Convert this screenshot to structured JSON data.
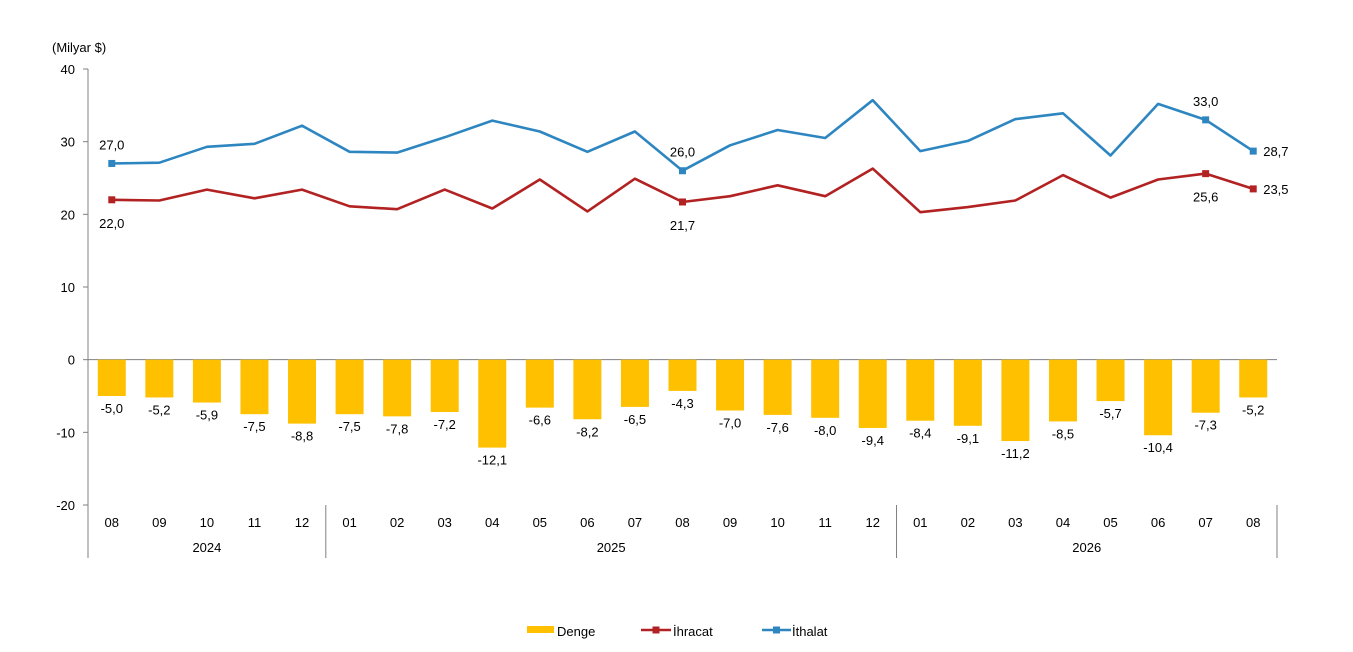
{
  "chart_data": {
    "type": "bar",
    "unit_label": "(Milyar $)",
    "ylim": [
      -20,
      40
    ],
    "yticks": [
      -20,
      -10,
      0,
      10,
      20,
      30,
      40
    ],
    "categories": [
      "08",
      "09",
      "10",
      "11",
      "12",
      "01",
      "02",
      "03",
      "04",
      "05",
      "06",
      "07",
      "08",
      "09",
      "10",
      "11",
      "12",
      "01",
      "02",
      "03",
      "04",
      "05",
      "06",
      "07",
      "08"
    ],
    "year_groups": [
      {
        "label": "2024",
        "start": 0,
        "end": 4
      },
      {
        "label": "2025",
        "start": 5,
        "end": 16
      },
      {
        "label": "2026",
        "start": 17,
        "end": 24
      }
    ],
    "series": [
      {
        "name": "Denge",
        "kind": "bar",
        "color": "#FFC000",
        "values": [
          -5.0,
          -5.2,
          -5.9,
          -7.5,
          -8.8,
          -7.5,
          -7.8,
          -7.2,
          -12.1,
          -6.6,
          -8.2,
          -6.5,
          -4.3,
          -7.0,
          -7.6,
          -8.0,
          -9.4,
          -8.4,
          -9.1,
          -11.2,
          -8.5,
          -5.7,
          -10.4,
          -7.3,
          -5.2
        ],
        "labels": [
          "-5,0",
          "-5,2",
          "-5,9",
          "-7,5",
          "-8,8",
          "-7,5",
          "-7,8",
          "-7,2",
          "-12,1",
          "-6,6",
          "-8,2",
          "-6,5",
          "-4,3",
          "-7,0",
          "-7,6",
          "-8,0",
          "-9,4",
          "-8,4",
          "-9,1",
          "-11,2",
          "-8,5",
          "-5,7",
          "-10,4",
          "-7,3",
          "-5,2"
        ]
      },
      {
        "name": "İhracat",
        "kind": "line",
        "color": "#B22222",
        "values": [
          22.0,
          21.9,
          23.4,
          22.2,
          23.4,
          21.1,
          20.7,
          23.4,
          20.8,
          24.8,
          20.4,
          24.9,
          21.7,
          22.5,
          24.0,
          22.5,
          26.3,
          20.3,
          21.0,
          21.9,
          25.4,
          22.3,
          24.8,
          25.6,
          23.5
        ],
        "markers": [
          0,
          12,
          23,
          24
        ],
        "labels": [
          {
            "index": 0,
            "text": "22,0",
            "pos": "below"
          },
          {
            "index": 12,
            "text": "21,7",
            "pos": "below"
          },
          {
            "index": 23,
            "text": "25,6",
            "pos": "below"
          },
          {
            "index": 24,
            "text": "23,5",
            "pos": "right"
          }
        ]
      },
      {
        "name": "İthalat",
        "kind": "line",
        "color": "#2E86C1",
        "values": [
          27.0,
          27.1,
          29.3,
          29.7,
          32.2,
          28.6,
          28.5,
          30.6,
          32.9,
          31.4,
          28.6,
          31.4,
          26.0,
          29.5,
          31.6,
          30.5,
          35.7,
          28.7,
          30.1,
          33.1,
          33.9,
          28.1,
          35.2,
          33.0,
          28.7
        ],
        "markers": [
          0,
          12,
          23,
          24
        ],
        "labels": [
          {
            "index": 0,
            "text": "27,0",
            "pos": "above"
          },
          {
            "index": 12,
            "text": "26,0",
            "pos": "above"
          },
          {
            "index": 23,
            "text": "33,0",
            "pos": "above"
          },
          {
            "index": 24,
            "text": "28,7",
            "pos": "right"
          }
        ]
      }
    ],
    "legend": {
      "position": "bottom-center",
      "items": [
        "Denge",
        "İhracat",
        "İthalat"
      ]
    }
  }
}
